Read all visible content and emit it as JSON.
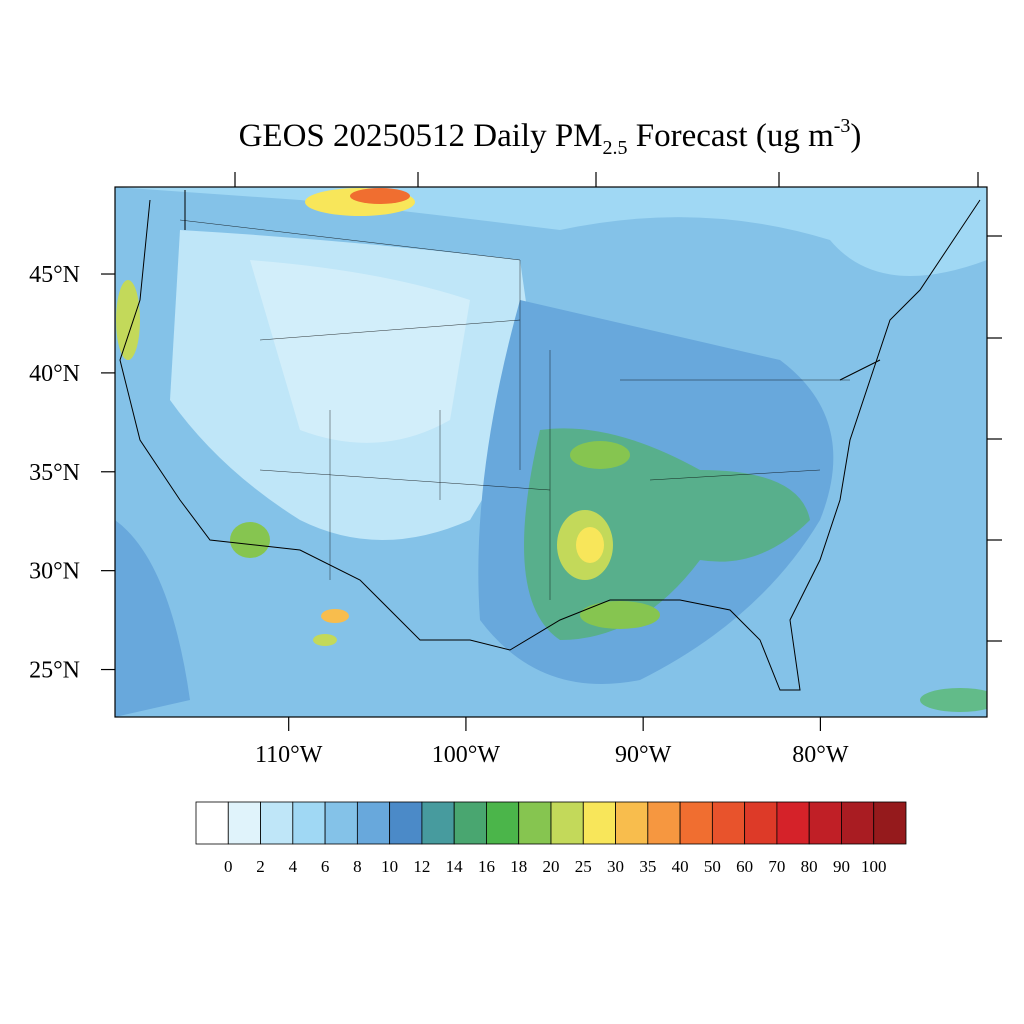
{
  "chart_data": {
    "type": "map",
    "title_parts": [
      "GEOS 20250512 Daily PM",
      "2.5",
      " Forecast (ug m",
      "-3",
      ")"
    ],
    "xlim": [
      -119.8,
      -70.6
    ],
    "ylim": [
      22.6,
      49.4
    ],
    "xticks": [
      {
        "value": -110,
        "label": "110°W"
      },
      {
        "value": -100,
        "label": "100°W"
      },
      {
        "value": -90,
        "label": "90°W"
      },
      {
        "value": -80,
        "label": "80°W"
      }
    ],
    "yticks": [
      {
        "value": 45,
        "label": "45°N"
      },
      {
        "value": 40,
        "label": "40°N"
      },
      {
        "value": 35,
        "label": "35°N"
      },
      {
        "value": 30,
        "label": "30°N"
      },
      {
        "value": 25,
        "label": "25°N"
      }
    ],
    "colorbar": {
      "levels": [
        0,
        2,
        4,
        6,
        8,
        10,
        12,
        14,
        16,
        18,
        20,
        25,
        30,
        35,
        40,
        50,
        60,
        70,
        80,
        90,
        100
      ],
      "colors": [
        "#ffffff",
        "#e0f3fb",
        "#bfe6f8",
        "#a0d8f4",
        "#84c2e8",
        "#68a8dc",
        "#4b8ac8",
        "#479b9e",
        "#49a670",
        "#4bb54a",
        "#86c550",
        "#c3d95a",
        "#f8e65a",
        "#f8bd4d",
        "#f69740",
        "#f06e30",
        "#e8532c",
        "#dd3a28",
        "#d52229",
        "#c01f26",
        "#a91c22",
        "#951a1c"
      ]
    }
  }
}
